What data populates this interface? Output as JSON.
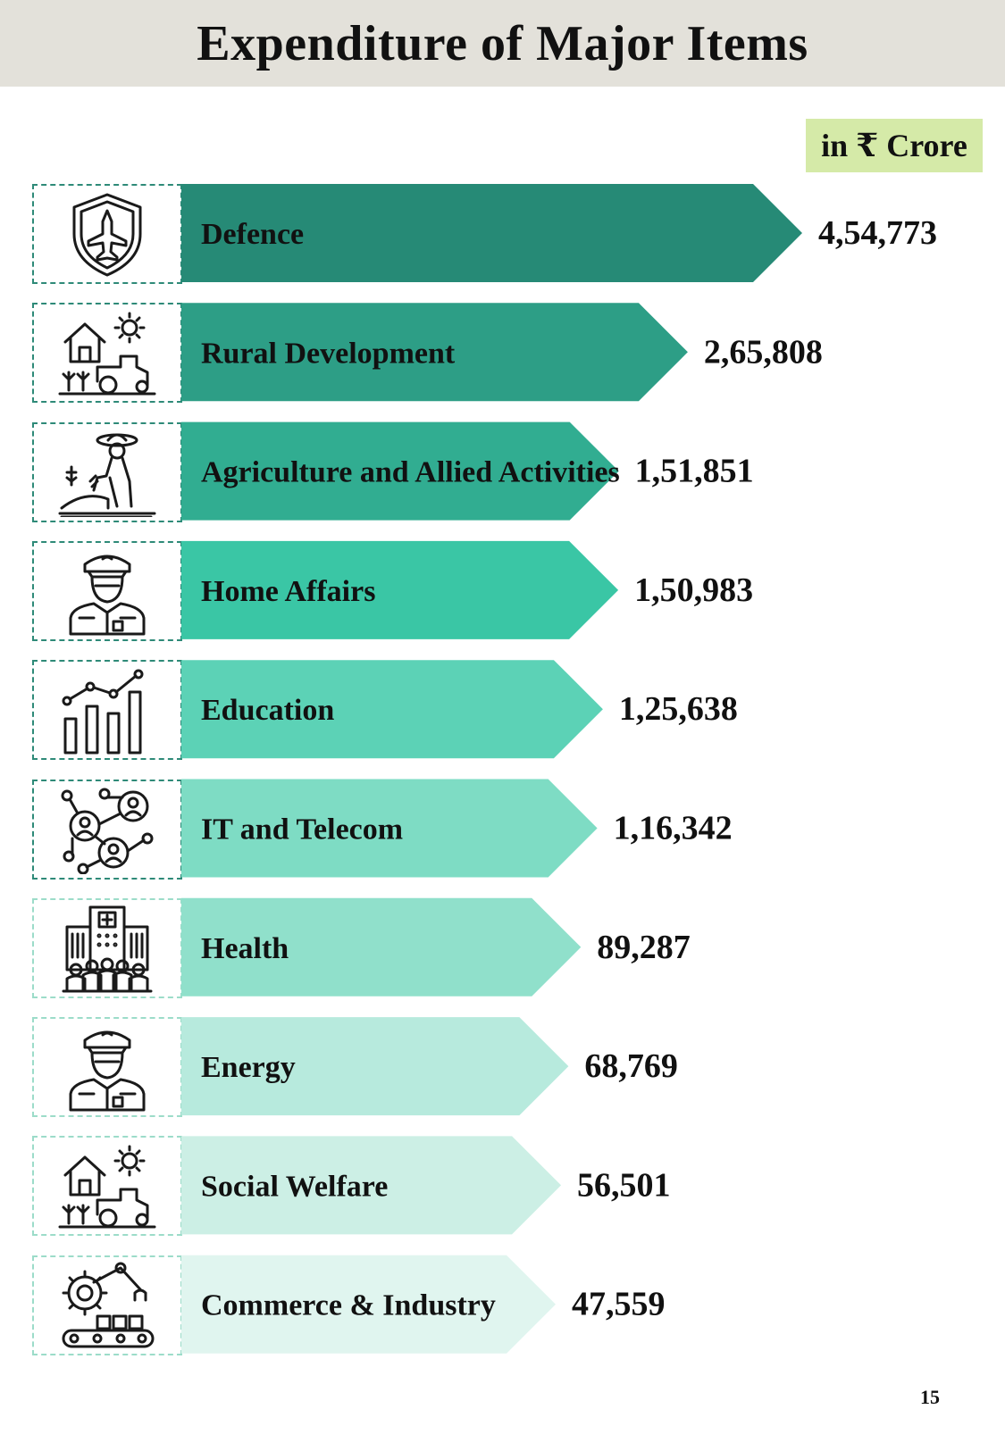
{
  "header": {
    "title": "Expenditure of Major Items"
  },
  "unit_badge": "in ₹ Crore",
  "page_number": "15",
  "chart_data": {
    "type": "bar",
    "orientation": "horizontal",
    "title": "Expenditure of Major Items",
    "unit": "in ₹ Crore",
    "categories": [
      "Defence",
      "Rural Development",
      "Agriculture and Allied Activities",
      "Home Affairs",
      "Education",
      "IT and Telecom",
      "Health",
      "Energy",
      "Social Welfare",
      "Commerce & Industry"
    ],
    "values": [
      454773,
      265808,
      151851,
      150983,
      125638,
      116342,
      89287,
      68769,
      56501,
      47559
    ],
    "value_labels": [
      "4,54,773",
      "2,65,808",
      "1,51,851",
      "1,50,983",
      "1,25,638",
      "1,16,342",
      "89,287",
      "68,769",
      "56,501",
      "47,559"
    ],
    "icons": [
      "shield-fighter-jet-icon",
      "farmhouse-tractor-icon",
      "farmer-planting-icon",
      "police-officer-icon",
      "growth-bar-chart-icon",
      "network-people-icon",
      "hospital-crowd-icon",
      "police-officer-icon",
      "farmhouse-tractor-icon",
      "industrial-robot-arm-icon"
    ],
    "colors": [
      "#268a76",
      "#2d9e86",
      "#31ad91",
      "#3ac6a5",
      "#5cd2b6",
      "#7edcc4",
      "#90e0cb",
      "#b7eadd",
      "#ccefe5",
      "#e0f5ef"
    ]
  }
}
